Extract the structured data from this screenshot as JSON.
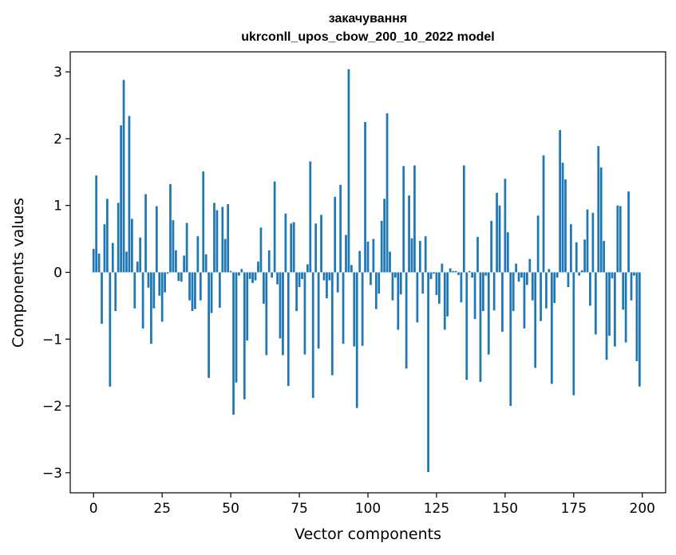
{
  "chart_data": {
    "type": "bar",
    "title": "закачування",
    "subtitle": "ukrconll_upos_cbow_200_10_2022 model",
    "xlabel": "Vector components",
    "ylabel": "Components values",
    "xlim": [
      -8.5,
      208.5
    ],
    "ylim": [
      -3.3,
      3.3
    ],
    "xticks": [
      0,
      25,
      50,
      75,
      100,
      125,
      150,
      175,
      200
    ],
    "yticks": [
      -3,
      -2,
      -1,
      0,
      1,
      2,
      3
    ],
    "grid": false,
    "bar_color": "#1f77b4",
    "values": [
      0.35,
      1.45,
      0.28,
      -0.77,
      0.72,
      1.1,
      -1.71,
      0.44,
      -0.58,
      1.04,
      2.2,
      2.88,
      0.31,
      2.34,
      0.8,
      -0.54,
      0.16,
      0.52,
      -0.84,
      1.17,
      -0.23,
      -1.07,
      -0.54,
      0.99,
      -0.35,
      -0.74,
      -0.3,
      -0.02,
      1.32,
      0.78,
      0.33,
      -0.13,
      -0.14,
      0.25,
      0.74,
      -0.42,
      -0.58,
      -0.55,
      0.54,
      -0.42,
      1.51,
      0.27,
      -1.58,
      -0.61,
      1.04,
      0.93,
      -0.53,
      0.98,
      0.5,
      1.02,
      0.02,
      -2.13,
      -1.65,
      -0.05,
      0.05,
      -1.9,
      -1.02,
      -0.1,
      -0.16,
      -0.12,
      0.16,
      0.67,
      -0.47,
      -1.24,
      0.33,
      -0.08,
      1.36,
      -0.18,
      -0.99,
      -1.24,
      0.88,
      -1.7,
      0.73,
      0.75,
      -0.58,
      -0.22,
      -0.1,
      -1.23,
      0.12,
      1.66,
      -1.88,
      0.73,
      -1.14,
      0.86,
      -0.12,
      -0.39,
      -0.12,
      -1.54,
      1.13,
      -0.3,
      1.31,
      -1.07,
      0.56,
      3.04,
      0.11,
      -1.11,
      -2.03,
      0.32,
      -1.1,
      2.25,
      0.46,
      -0.19,
      0.5,
      -0.55,
      -0.32,
      0.77,
      1.1,
      2.38,
      0.31,
      -0.42,
      -0.08,
      -0.86,
      -0.33,
      1.59,
      -1.44,
      1.15,
      0.51,
      1.6,
      -0.75,
      0.47,
      -0.32,
      0.54,
      -2.99,
      -0.1,
      -0.02,
      -0.34,
      -0.47,
      0.13,
      -0.86,
      -0.66,
      0.06,
      0.02,
      0.02,
      -0.04,
      -0.45,
      1.6,
      -1.61,
      0.02,
      -0.08,
      -0.7,
      0.53,
      -1.64,
      -0.58,
      -0.05,
      -1.23,
      0.77,
      -0.57,
      1.19,
      1.0,
      -0.89,
      1.4,
      0.6,
      -2.0,
      -0.58,
      0.13,
      -0.14,
      -0.08,
      -0.84,
      -0.19,
      0.2,
      -0.42,
      -1.43,
      0.85,
      -0.73,
      1.75,
      -0.54,
      0.05,
      -1.67,
      -0.46,
      -0.08,
      2.13,
      1.64,
      1.39,
      -0.22,
      0.72,
      -1.84,
      0.45,
      -0.05,
      0.03,
      0.49,
      0.94,
      -0.5,
      0.89,
      -0.93,
      1.89,
      1.57,
      0.47,
      -1.31,
      -0.95,
      -0.09,
      -1.11,
      1.0,
      0.99,
      -0.56,
      -1.05,
      1.21,
      -0.42,
      -0.05,
      -1.33,
      -1.71
    ]
  }
}
